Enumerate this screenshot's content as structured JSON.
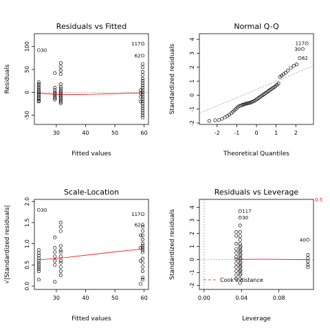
{
  "chart_data": [
    {
      "type": "scatter",
      "title": "Residuals vs Fitted",
      "xlabel": "Fitted values",
      "ylabel": "Residuals",
      "xlim": [
        22.5,
        61.5
      ],
      "ylim": [
        -70,
        128
      ],
      "xticks": [
        30,
        40,
        50,
        60
      ],
      "yticks": [
        -50,
        0,
        50,
        100
      ],
      "groups": [
        {
          "x": 24,
          "ys": [
            92,
            22,
            18,
            14,
            10,
            6,
            2,
            0,
            -3,
            -6,
            -9,
            -12,
            -15,
            -18,
            -20
          ]
        },
        {
          "x": 29.5,
          "ys": [
            42,
            10,
            5,
            0,
            -3,
            -6,
            -10,
            -13,
            -16
          ]
        },
        {
          "x": 31.5,
          "ys": [
            64,
            56,
            48,
            40,
            18,
            12,
            8,
            3,
            0,
            -3,
            -6,
            -9,
            -12,
            -15,
            -18,
            -21,
            -24
          ]
        },
        {
          "x": 59.5,
          "ys": [
            106,
            80,
            62,
            55,
            45,
            38,
            30,
            25,
            20,
            15,
            10,
            5,
            0,
            -5,
            -10,
            -15,
            -20,
            -25,
            -30,
            -35,
            -40,
            -45,
            -50,
            -55
          ]
        },
        {
          "x": 58.8,
          "ys": [
            5,
            -2,
            -10,
            -20
          ]
        }
      ],
      "fit_line": [
        [
          24,
          -2
        ],
        [
          31.5,
          -5
        ],
        [
          40,
          -4.5
        ],
        [
          50,
          -3
        ],
        [
          60,
          -1
        ]
      ],
      "annotations": [
        {
          "label": "30",
          "x": 24,
          "y": 92
        },
        {
          "label": "117",
          "x": 59.5,
          "y": 106
        },
        {
          "label": "62",
          "x": 59.5,
          "y": 80
        }
      ]
    },
    {
      "type": "scatter",
      "title": "Normal Q-Q",
      "xlabel": "Theoretical Quantiles",
      "ylabel": "Standardized residuals",
      "xlim": [
        -2.9,
        2.9
      ],
      "ylim": [
        -2.1,
        4.4
      ],
      "xticks": [
        -2,
        -1,
        0,
        1,
        2
      ],
      "yticks": [
        -2,
        -1,
        0,
        1,
        2,
        3,
        4
      ],
      "points": [
        [
          -2.4,
          -1.85
        ],
        [
          -2.1,
          -1.8
        ],
        [
          -1.9,
          -1.78
        ],
        [
          -1.75,
          -1.7
        ],
        [
          -1.6,
          -1.6
        ],
        [
          -1.48,
          -1.5
        ],
        [
          -1.38,
          -1.4
        ],
        [
          -1.28,
          -1.3
        ],
        [
          -1.2,
          -1.2
        ],
        [
          -1.12,
          -1.1
        ],
        [
          -1.05,
          -1.0
        ],
        [
          -0.98,
          -0.9
        ],
        [
          -0.92,
          -0.82
        ],
        [
          -0.85,
          -0.78
        ],
        [
          -0.78,
          -0.74
        ],
        [
          -0.72,
          -0.7
        ],
        [
          -0.66,
          -0.68
        ],
        [
          -0.6,
          -0.65
        ],
        [
          -0.54,
          -0.62
        ],
        [
          -0.48,
          -0.6
        ],
        [
          -0.42,
          -0.58
        ],
        [
          -0.36,
          -0.56
        ],
        [
          -0.3,
          -0.54
        ],
        [
          -0.24,
          -0.5
        ],
        [
          -0.18,
          -0.46
        ],
        [
          -0.12,
          -0.42
        ],
        [
          -0.06,
          -0.38
        ],
        [
          0.0,
          -0.32
        ],
        [
          0.06,
          -0.26
        ],
        [
          0.12,
          -0.2
        ],
        [
          0.18,
          -0.14
        ],
        [
          0.24,
          -0.08
        ],
        [
          0.3,
          -0.02
        ],
        [
          0.36,
          0.04
        ],
        [
          0.42,
          0.1
        ],
        [
          0.48,
          0.16
        ],
        [
          0.54,
          0.22
        ],
        [
          0.6,
          0.28
        ],
        [
          0.66,
          0.34
        ],
        [
          0.72,
          0.4
        ],
        [
          0.78,
          0.46
        ],
        [
          0.85,
          0.52
        ],
        [
          0.92,
          0.58
        ],
        [
          0.98,
          0.66
        ],
        [
          1.05,
          0.74
        ],
        [
          1.12,
          0.84
        ],
        [
          1.2,
          1.3
        ],
        [
          1.28,
          1.4
        ],
        [
          1.38,
          1.5
        ],
        [
          1.48,
          1.6
        ],
        [
          1.6,
          1.75
        ],
        [
          1.75,
          1.95
        ],
        [
          1.9,
          2.1
        ],
        [
          2.05,
          2.2
        ],
        [
          2.2,
          2.65
        ],
        [
          2.35,
          3.3
        ],
        [
          2.55,
          3.7
        ]
      ],
      "ref_line": [
        [
          -2.9,
          -1.3
        ],
        [
          2.9,
          2.1
        ]
      ],
      "annotations": [
        {
          "label": "117",
          "x": 2.55,
          "y": 3.7
        },
        {
          "label": "30",
          "x": 2.35,
          "y": 3.3
        },
        {
          "label": "62",
          "x": 2.2,
          "y": 2.65
        }
      ]
    },
    {
      "type": "scatter",
      "title": "Scale-Location",
      "xlabel": "Fitted values",
      "ylabel": "√|Standardized residuals|",
      "xlim": [
        22.5,
        61.5
      ],
      "ylim": [
        -0.08,
        2.05
      ],
      "xticks": [
        30,
        40,
        50,
        60
      ],
      "yticks": [
        0.0,
        0.5,
        1.0,
        1.5,
        2.0
      ],
      "groups": [
        {
          "x": 24,
          "ys": [
            1.8,
            0.85,
            0.78,
            0.72,
            0.66,
            0.6,
            0.55,
            0.5,
            0.45,
            0.4,
            0.35,
            0.15
          ]
        },
        {
          "x": 29.5,
          "ys": [
            1.15,
            0.9,
            0.8,
            0.7,
            0.6,
            0.5,
            0.1
          ]
        },
        {
          "x": 31.5,
          "ys": [
            1.5,
            1.4,
            1.3,
            0.95,
            0.85,
            0.8,
            0.7,
            0.6,
            0.55,
            0.45,
            0.35,
            0.25
          ]
        },
        {
          "x": 59.5,
          "ys": [
            1.7,
            1.45,
            1.4,
            1.3,
            1.2,
            1.1,
            1.0,
            0.95,
            0.9,
            0.85,
            0.8,
            0.65,
            0.55,
            0.45,
            0.35,
            0.2,
            0.15
          ]
        },
        {
          "x": 58.8,
          "ys": [
            1.2,
            0.9,
            0.6,
            0.05
          ]
        }
      ],
      "fit_line": [
        [
          24,
          0.62
        ],
        [
          31.5,
          0.66
        ],
        [
          40,
          0.73
        ],
        [
          50,
          0.81
        ],
        [
          60,
          0.88
        ]
      ],
      "annotations": [
        {
          "label": "30",
          "x": 24,
          "y": 1.8
        },
        {
          "label": "117",
          "x": 59.5,
          "y": 1.7
        },
        {
          "label": "62",
          "x": 59.5,
          "y": 1.45
        }
      ]
    },
    {
      "type": "scatter",
      "title": "Residuals vs Leverage",
      "xlabel": "Leverage",
      "ylabel": "Standardized residuals",
      "xlim": [
        -0.005,
        0.117
      ],
      "ylim": [
        -2.3,
        4.6
      ],
      "xticks": [
        0.0,
        0.04,
        0.08
      ],
      "xticklabels": [
        "0.00",
        "0.04",
        "0.08"
      ],
      "yticks": [
        -2,
        -1,
        0,
        1,
        2,
        3,
        4
      ],
      "groups": [
        {
          "x": 0.0345,
          "ys": [
            2.1,
            1.8,
            1.2,
            0.8,
            0.5,
            0.2,
            0.0,
            -0.3,
            -0.6,
            -0.9,
            -1.2,
            -1.5
          ]
        },
        {
          "x": 0.0385,
          "ys": [
            3.7,
            3.2,
            2.6,
            2.1,
            1.8,
            1.5,
            1.2,
            0.9,
            0.6,
            0.3,
            0.0,
            -0.3,
            -0.6,
            -0.9,
            -1.2,
            -1.5,
            -1.8
          ]
        },
        {
          "x": 0.039,
          "ys": [
            1.0,
            0.7,
            0.4,
            0.1,
            -0.2,
            -0.5,
            -0.8,
            -1.1
          ]
        },
        {
          "x": 0.111,
          "ys": [
            1.5,
            0.35,
            0.1,
            -0.15,
            -0.4,
            -0.6
          ]
        }
      ],
      "fit_line": [
        [
          0.0345,
          -0.05
        ],
        [
          0.039,
          0.0
        ],
        [
          0.06,
          0.02
        ],
        [
          0.085,
          0.0
        ],
        [
          0.111,
          -0.02
        ]
      ],
      "annotations": [
        {
          "label": "117",
          "x": 0.0385,
          "y": 3.7
        },
        {
          "label": "30",
          "x": 0.0385,
          "y": 3.2
        },
        {
          "label": "40",
          "x": 0.111,
          "y": 1.5
        }
      ],
      "cooks_contour_label": "0.5",
      "legend": {
        "label": "Cook's distance",
        "position": "bottom-left"
      }
    }
  ]
}
